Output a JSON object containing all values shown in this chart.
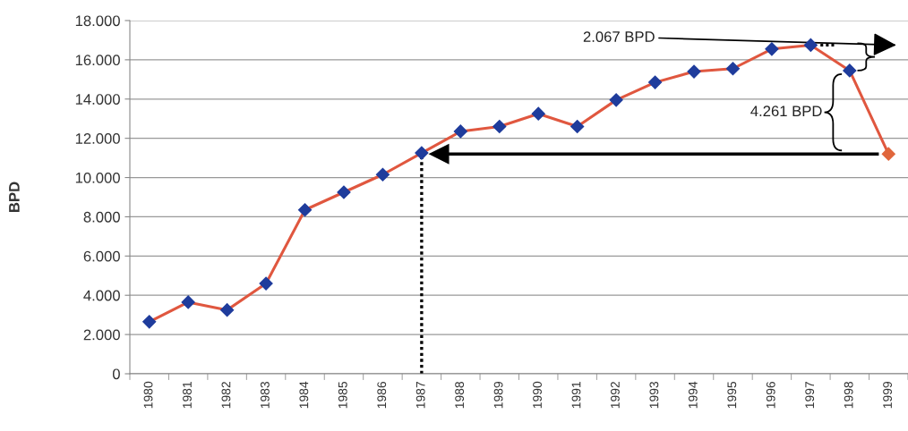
{
  "chart_data": {
    "type": "line",
    "ylabel": "BPD",
    "categories": [
      "1980",
      "1981",
      "1982",
      "1983",
      "1984",
      "1985",
      "1986",
      "1987",
      "1988",
      "1989",
      "1990",
      "1991",
      "1992",
      "1993",
      "1994",
      "1995",
      "1996",
      "1997",
      "1998",
      "1999"
    ],
    "series": [
      {
        "color": "#e0573f",
        "colors": [
          "#1f3c9c",
          "#1f3c9c",
          "#1f3c9c",
          "#1f3c9c",
          "#1f3c9c",
          "#1f3c9c",
          "#1f3c9c",
          "#1f3c9c",
          "#1f3c9c",
          "#1f3c9c",
          "#1f3c9c",
          "#1f3c9c",
          "#1f3c9c",
          "#1f3c9c",
          "#1f3c9c",
          "#1f3c9c",
          "#1f3c9c",
          "#1f3c9c",
          "#1f3c9c",
          "#e0663c"
        ],
        "values": [
          2650,
          3650,
          3250,
          4600,
          8350,
          9250,
          10150,
          11250,
          12350,
          12600,
          13250,
          12600,
          13950,
          14850,
          15400,
          15550,
          16550,
          16750,
          15450,
          11200
        ]
      }
    ],
    "ylim": [
      0,
      18000
    ],
    "yticks": [
      0,
      {
        "value": 2000,
        "label": "2.000"
      },
      {
        "value": 4000,
        "label": "4.000"
      },
      {
        "value": 6000,
        "label": "6.000"
      },
      {
        "value": 8000,
        "label": "8.000"
      },
      {
        "value": 10000,
        "label": "10.000"
      },
      {
        "value": 12000,
        "label": "12.000"
      },
      {
        "value": 14000,
        "label": "14.000"
      },
      {
        "value": 16000,
        "label": "16.000"
      },
      {
        "value": 18000,
        "label": "18.000"
      }
    ],
    "grid": "y",
    "marker": "diamond",
    "line_style": "solid",
    "annotations": [
      "2.067 BPD",
      "4.261 BPD"
    ],
    "ref_lines": [
      {
        "axis": "x",
        "value": "1987",
        "line_style": "dotted",
        "color": "#000000"
      },
      {
        "axis": "y",
        "value": 11200,
        "color": "#000000"
      }
    ]
  }
}
